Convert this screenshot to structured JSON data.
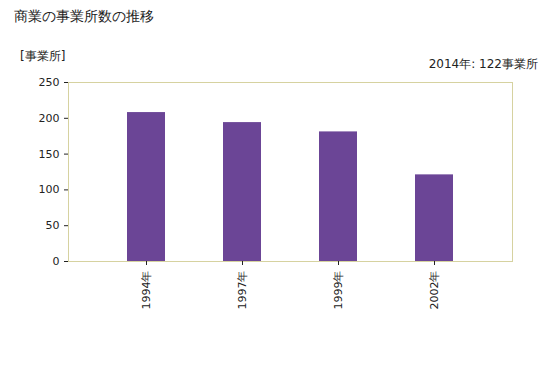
{
  "chart_data": {
    "type": "bar",
    "title": "商業の事業所数の推移",
    "y_label": "[事業所]",
    "annotation": "2014年: 122事業所",
    "categories": [
      "1994年",
      "1997年",
      "1999年",
      "2002年"
    ],
    "values": [
      208,
      194,
      181,
      121
    ],
    "color": "#6b4596",
    "ylim": [
      0,
      250
    ],
    "yticks": [
      0,
      50,
      100,
      150,
      200,
      250
    ],
    "grid": false
  }
}
